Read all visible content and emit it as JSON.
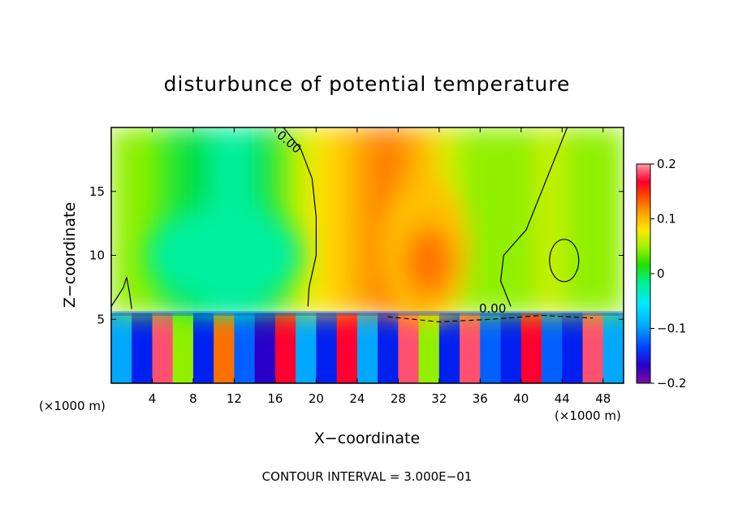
{
  "chart_data": {
    "type": "heatmap",
    "title": "disturbunce of potential temperature",
    "xlabel": "X−coordinate",
    "ylabel": "Z−coordinate",
    "x_unit_left": "(×1000 m)",
    "x_unit_right": "(×1000 m)",
    "xlim": [
      0,
      50
    ],
    "ylim": [
      0,
      20
    ],
    "x_ticks": [
      4,
      8,
      12,
      16,
      20,
      24,
      28,
      32,
      36,
      40,
      44,
      48
    ],
    "x_tick_labels": [
      "4",
      "8",
      "12",
      "16",
      "20",
      "24",
      "28",
      "32",
      "36",
      "40",
      "44",
      "48"
    ],
    "y_ticks": [
      5,
      10,
      15
    ],
    "y_tick_labels": [
      "5",
      "10",
      "15"
    ],
    "colorbar": {
      "range": [
        -0.2,
        0.2
      ],
      "ticks": [
        -0.2,
        -0.1,
        0,
        0.1,
        0.2
      ],
      "tick_labels": [
        "−0.2",
        "−0.1",
        "0",
        "0.1",
        "0.2"
      ],
      "colors": [
        "#7a0fa0",
        "#2a00c8",
        "#0020f0",
        "#0060ff",
        "#00a8ff",
        "#00e0ff",
        "#00ffe0",
        "#00f0a0",
        "#00e040",
        "#40ee00",
        "#90f000",
        "#d8f000",
        "#ffe000",
        "#ffc000",
        "#ff9c00",
        "#ff7000",
        "#ff4000",
        "#ff0030",
        "#ff5070",
        "#ff9aa8"
      ]
    },
    "contour_labels": [
      "0.00",
      "0.00"
    ],
    "footer": "CONTOUR INTERVAL = 3.000E−01",
    "field": {
      "z_range": [
        0,
        20
      ],
      "x_range": [
        0,
        50
      ],
      "rows": [
        {
          "z": [
            0,
            5.5
          ],
          "values": [
            -0.12,
            -0.16,
            0.18,
            0.0,
            -0.15,
            0.12,
            -0.13,
            -0.17,
            0.16,
            -0.12,
            -0.15,
            0.15,
            -0.12,
            -0.16,
            0.18,
            0.0,
            -0.15,
            0.17,
            -0.14,
            -0.16,
            0.16,
            -0.13,
            -0.15,
            0.18,
            -0.12
          ]
        },
        {
          "z": [
            5.5,
            20
          ],
          "values": [
            0.02,
            0.01,
            -0.02,
            -0.03,
            -0.04,
            -0.06,
            -0.05,
            -0.04,
            -0.02,
            0.03,
            0.06,
            0.08,
            0.1,
            0.12,
            0.1,
            0.07,
            0.04,
            0.02,
            0.01,
            0.02,
            0.02,
            0.03,
            0.02,
            0.02,
            0.02
          ]
        }
      ],
      "warm_core": {
        "center": [
          30.5,
          10.5
        ],
        "value": 0.12
      },
      "cool_region": {
        "center": [
          11,
          10
        ],
        "value": -0.06
      }
    }
  }
}
